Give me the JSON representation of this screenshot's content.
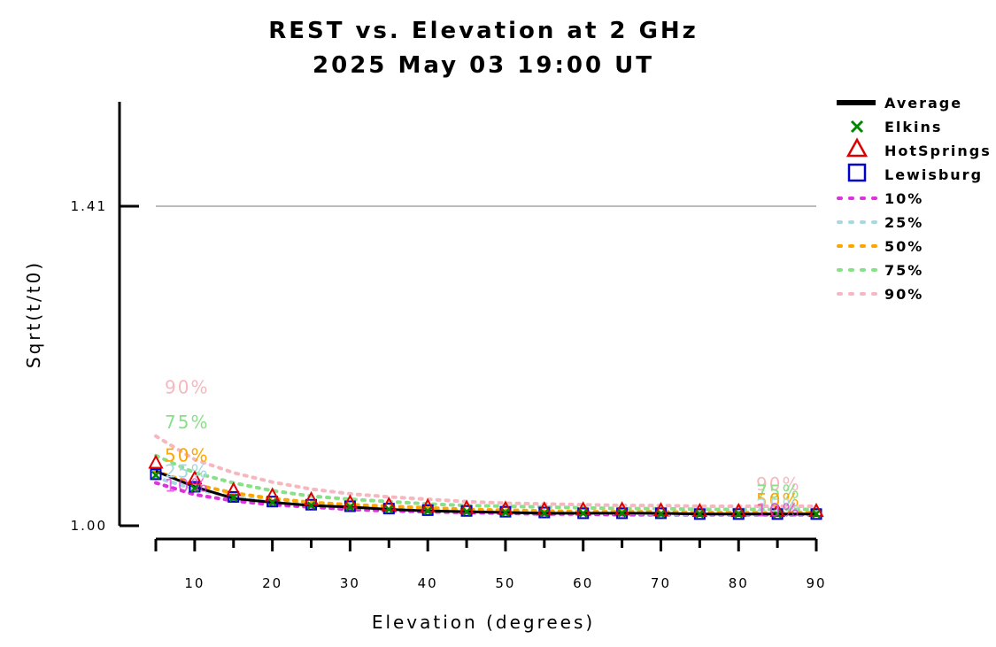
{
  "chart_data": {
    "type": "line",
    "title": "REST vs. Elevation at 2 GHz",
    "subtitle": "2025 May 03 19:00 UT",
    "xlabel": "Elevation (degrees)",
    "ylabel": "Sqrt(t/t0)",
    "xlim": [
      5,
      90
    ],
    "ylim": [
      0.985,
      1.57
    ],
    "x_ticks": [
      10,
      20,
      30,
      40,
      50,
      60,
      70,
      80,
      90
    ],
    "y_ticks": [
      1.0,
      1.41
    ],
    "y_tick_labels": [
      "1.00",
      "1.41"
    ],
    "reference_line": {
      "y": 1.41,
      "color": "#bbbbbb"
    },
    "legend_position": "top-right, outside plot",
    "x": [
      5,
      10,
      15,
      20,
      25,
      30,
      35,
      40,
      45,
      50,
      55,
      60,
      65,
      70,
      75,
      80,
      85,
      90
    ],
    "series": [
      {
        "name": "Average",
        "kind": "line",
        "color": "#000000",
        "values": [
          1.07,
          1.05,
          1.035,
          1.03,
          1.026,
          1.024,
          1.021,
          1.019,
          1.018,
          1.017,
          1.016,
          1.016,
          1.016,
          1.016,
          1.015,
          1.015,
          1.015,
          1.015
        ]
      },
      {
        "name": "Elkins",
        "kind": "marker",
        "marker": "x",
        "color": "#008800",
        "values": [
          1.065,
          1.048,
          1.036,
          1.03,
          1.026,
          1.024,
          1.021,
          1.019,
          1.018,
          1.017,
          1.016,
          1.016,
          1.016,
          1.015,
          1.015,
          1.015,
          1.015,
          1.015
        ]
      },
      {
        "name": "HotSprings",
        "kind": "marker",
        "marker": "triangle",
        "color": "#dd0000",
        "values": [
          1.08,
          1.06,
          1.045,
          1.038,
          1.033,
          1.029,
          1.026,
          1.024,
          1.022,
          1.021,
          1.02,
          1.02,
          1.02,
          1.019,
          1.018,
          1.018,
          1.018,
          1.018
        ]
      },
      {
        "name": "Lewisburg",
        "kind": "marker",
        "marker": "square",
        "color": "#0000cc",
        "values": [
          1.066,
          1.05,
          1.037,
          1.031,
          1.027,
          1.025,
          1.022,
          1.02,
          1.019,
          1.018,
          1.017,
          1.016,
          1.016,
          1.016,
          1.015,
          1.015,
          1.015,
          1.015
        ]
      },
      {
        "name": "10%",
        "kind": "dotted",
        "color": "#dd33dd",
        "values": [
          1.055,
          1.04,
          1.032,
          1.027,
          1.024,
          1.021,
          1.019,
          1.018,
          1.017,
          1.016,
          1.015,
          1.015,
          1.014,
          1.014,
          1.014,
          1.014,
          1.014,
          1.014
        ]
      },
      {
        "name": "25%",
        "kind": "dotted",
        "color": "#a8d8e0",
        "values": [
          1.062,
          1.047,
          1.037,
          1.031,
          1.027,
          1.024,
          1.022,
          1.02,
          1.019,
          1.018,
          1.017,
          1.016,
          1.016,
          1.015,
          1.015,
          1.015,
          1.015,
          1.015
        ]
      },
      {
        "name": "50%",
        "kind": "dotted",
        "color": "#ffa500",
        "values": [
          1.07,
          1.053,
          1.042,
          1.035,
          1.03,
          1.027,
          1.025,
          1.023,
          1.021,
          1.02,
          1.019,
          1.018,
          1.018,
          1.018,
          1.017,
          1.017,
          1.017,
          1.017
        ]
      },
      {
        "name": "75%",
        "kind": "dotted",
        "color": "#88e088",
        "values": [
          1.09,
          1.068,
          1.055,
          1.045,
          1.038,
          1.034,
          1.031,
          1.028,
          1.026,
          1.025,
          1.024,
          1.023,
          1.022,
          1.022,
          1.021,
          1.021,
          1.021,
          1.021
        ]
      },
      {
        "name": "90%",
        "kind": "dotted",
        "color": "#f5b8c0",
        "values": [
          1.115,
          1.085,
          1.068,
          1.056,
          1.047,
          1.041,
          1.037,
          1.034,
          1.031,
          1.029,
          1.028,
          1.027,
          1.026,
          1.026,
          1.025,
          1.025,
          1.025,
          1.025
        ]
      }
    ],
    "annotations": [
      {
        "text": "90%",
        "series": "90%",
        "at": "start"
      },
      {
        "text": "75%",
        "series": "75%",
        "at": "start"
      },
      {
        "text": "50%",
        "series": "50%",
        "at": "start"
      },
      {
        "text": "25%",
        "series": "25%",
        "at": "start"
      },
      {
        "text": "10%",
        "series": "10%",
        "at": "start"
      },
      {
        "text": "90%",
        "series": "90%",
        "at": "end"
      },
      {
        "text": "75%",
        "series": "75%",
        "at": "end"
      },
      {
        "text": "50%",
        "series": "50%",
        "at": "end"
      },
      {
        "text": "25%",
        "series": "25%",
        "at": "end"
      },
      {
        "text": "10%",
        "series": "10%",
        "at": "end"
      }
    ]
  }
}
